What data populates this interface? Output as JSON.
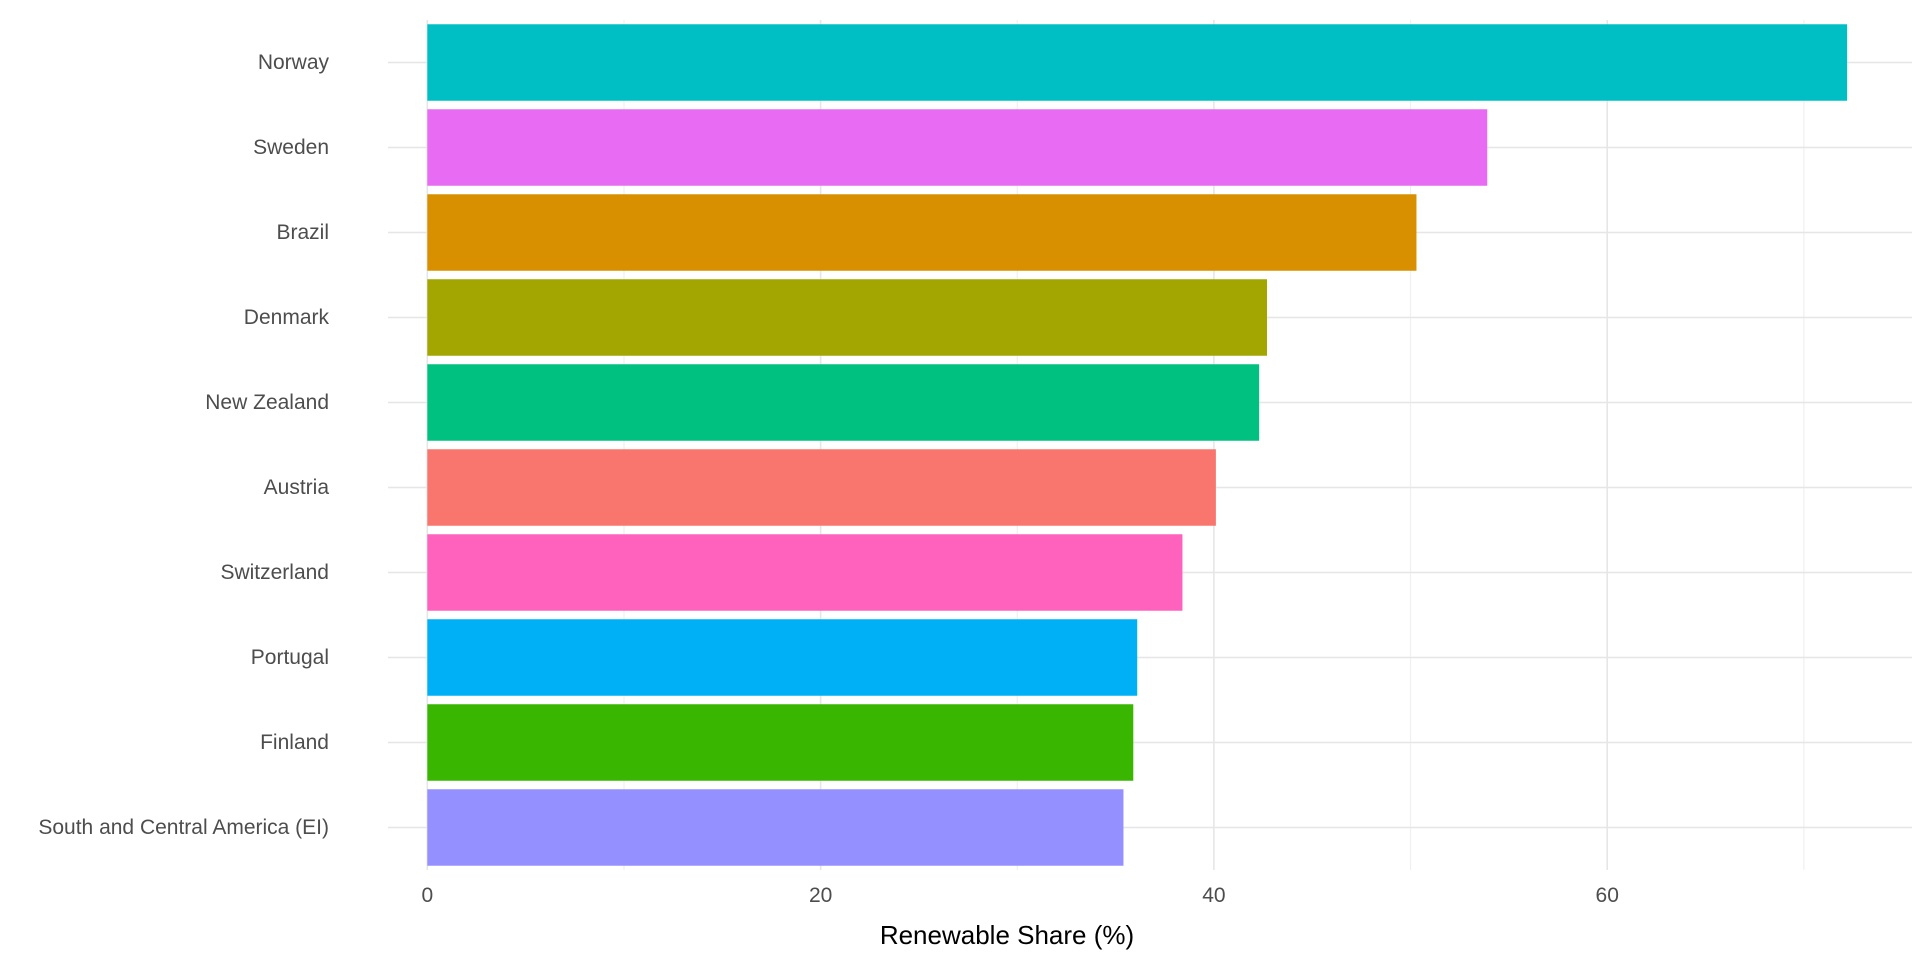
{
  "chart_data": {
    "type": "bar",
    "orientation": "horizontal",
    "title": "",
    "xlabel": "Renewable Share (%)",
    "ylabel": "",
    "xlim": [
      -2,
      75.5
    ],
    "x_ticks": [
      0,
      20,
      40,
      60
    ],
    "x_minor_ticks": [
      10,
      30,
      50,
      70
    ],
    "grid": true,
    "legend": "none",
    "categories": [
      "Norway",
      "Sweden",
      "Brazil",
      "Denmark",
      "New Zealand",
      "Austria",
      "Switzerland",
      "Portugal",
      "Finland",
      "South and Central America (EI)"
    ],
    "values": [
      72.2,
      53.9,
      50.3,
      42.7,
      42.3,
      40.1,
      38.4,
      36.1,
      35.9,
      35.4
    ],
    "colors": [
      "#00BFC4",
      "#E76BF3",
      "#D89000",
      "#A3A500",
      "#00C17F",
      "#F8766D",
      "#FF62BC",
      "#00B0F6",
      "#39B600",
      "#9590FF"
    ]
  }
}
